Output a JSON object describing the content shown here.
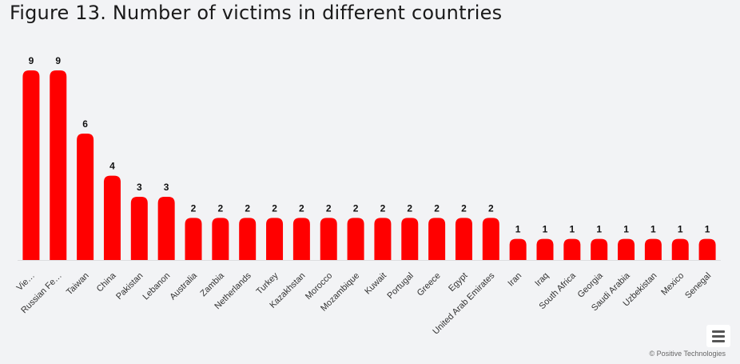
{
  "title": "Figure 13. Number of victims in different countries",
  "credit": "© Positive Technologies",
  "colors": {
    "bar": "#ff0000",
    "background": "#f2f3f5",
    "axis": "#dcdde0"
  },
  "menu": {
    "icon": "hamburger-menu-icon"
  },
  "chart_data": {
    "type": "bar",
    "categories": [
      "Vie…",
      "Russian Fe…",
      "Taiwan",
      "China",
      "Pakistan",
      "Lebanon",
      "Australia",
      "Zambia",
      "Netherlands",
      "Turkey",
      "Kazakhstan",
      "Morocco",
      "Mozambique",
      "Kuwait",
      "Portugal",
      "Greece",
      "Egypt",
      "United Arab Emirates",
      "Iran",
      "Iraq",
      "South Africa",
      "Georgia",
      "Saudi Arabia",
      "Uzbekistan",
      "Mexico",
      "Senegal"
    ],
    "values": [
      9,
      9,
      6,
      4,
      3,
      3,
      2,
      2,
      2,
      2,
      2,
      2,
      2,
      2,
      2,
      2,
      2,
      2,
      1,
      1,
      1,
      1,
      1,
      1,
      1,
      1
    ],
    "data_labels": true,
    "ylim": [
      0,
      9
    ],
    "grid": false,
    "legend": false
  }
}
